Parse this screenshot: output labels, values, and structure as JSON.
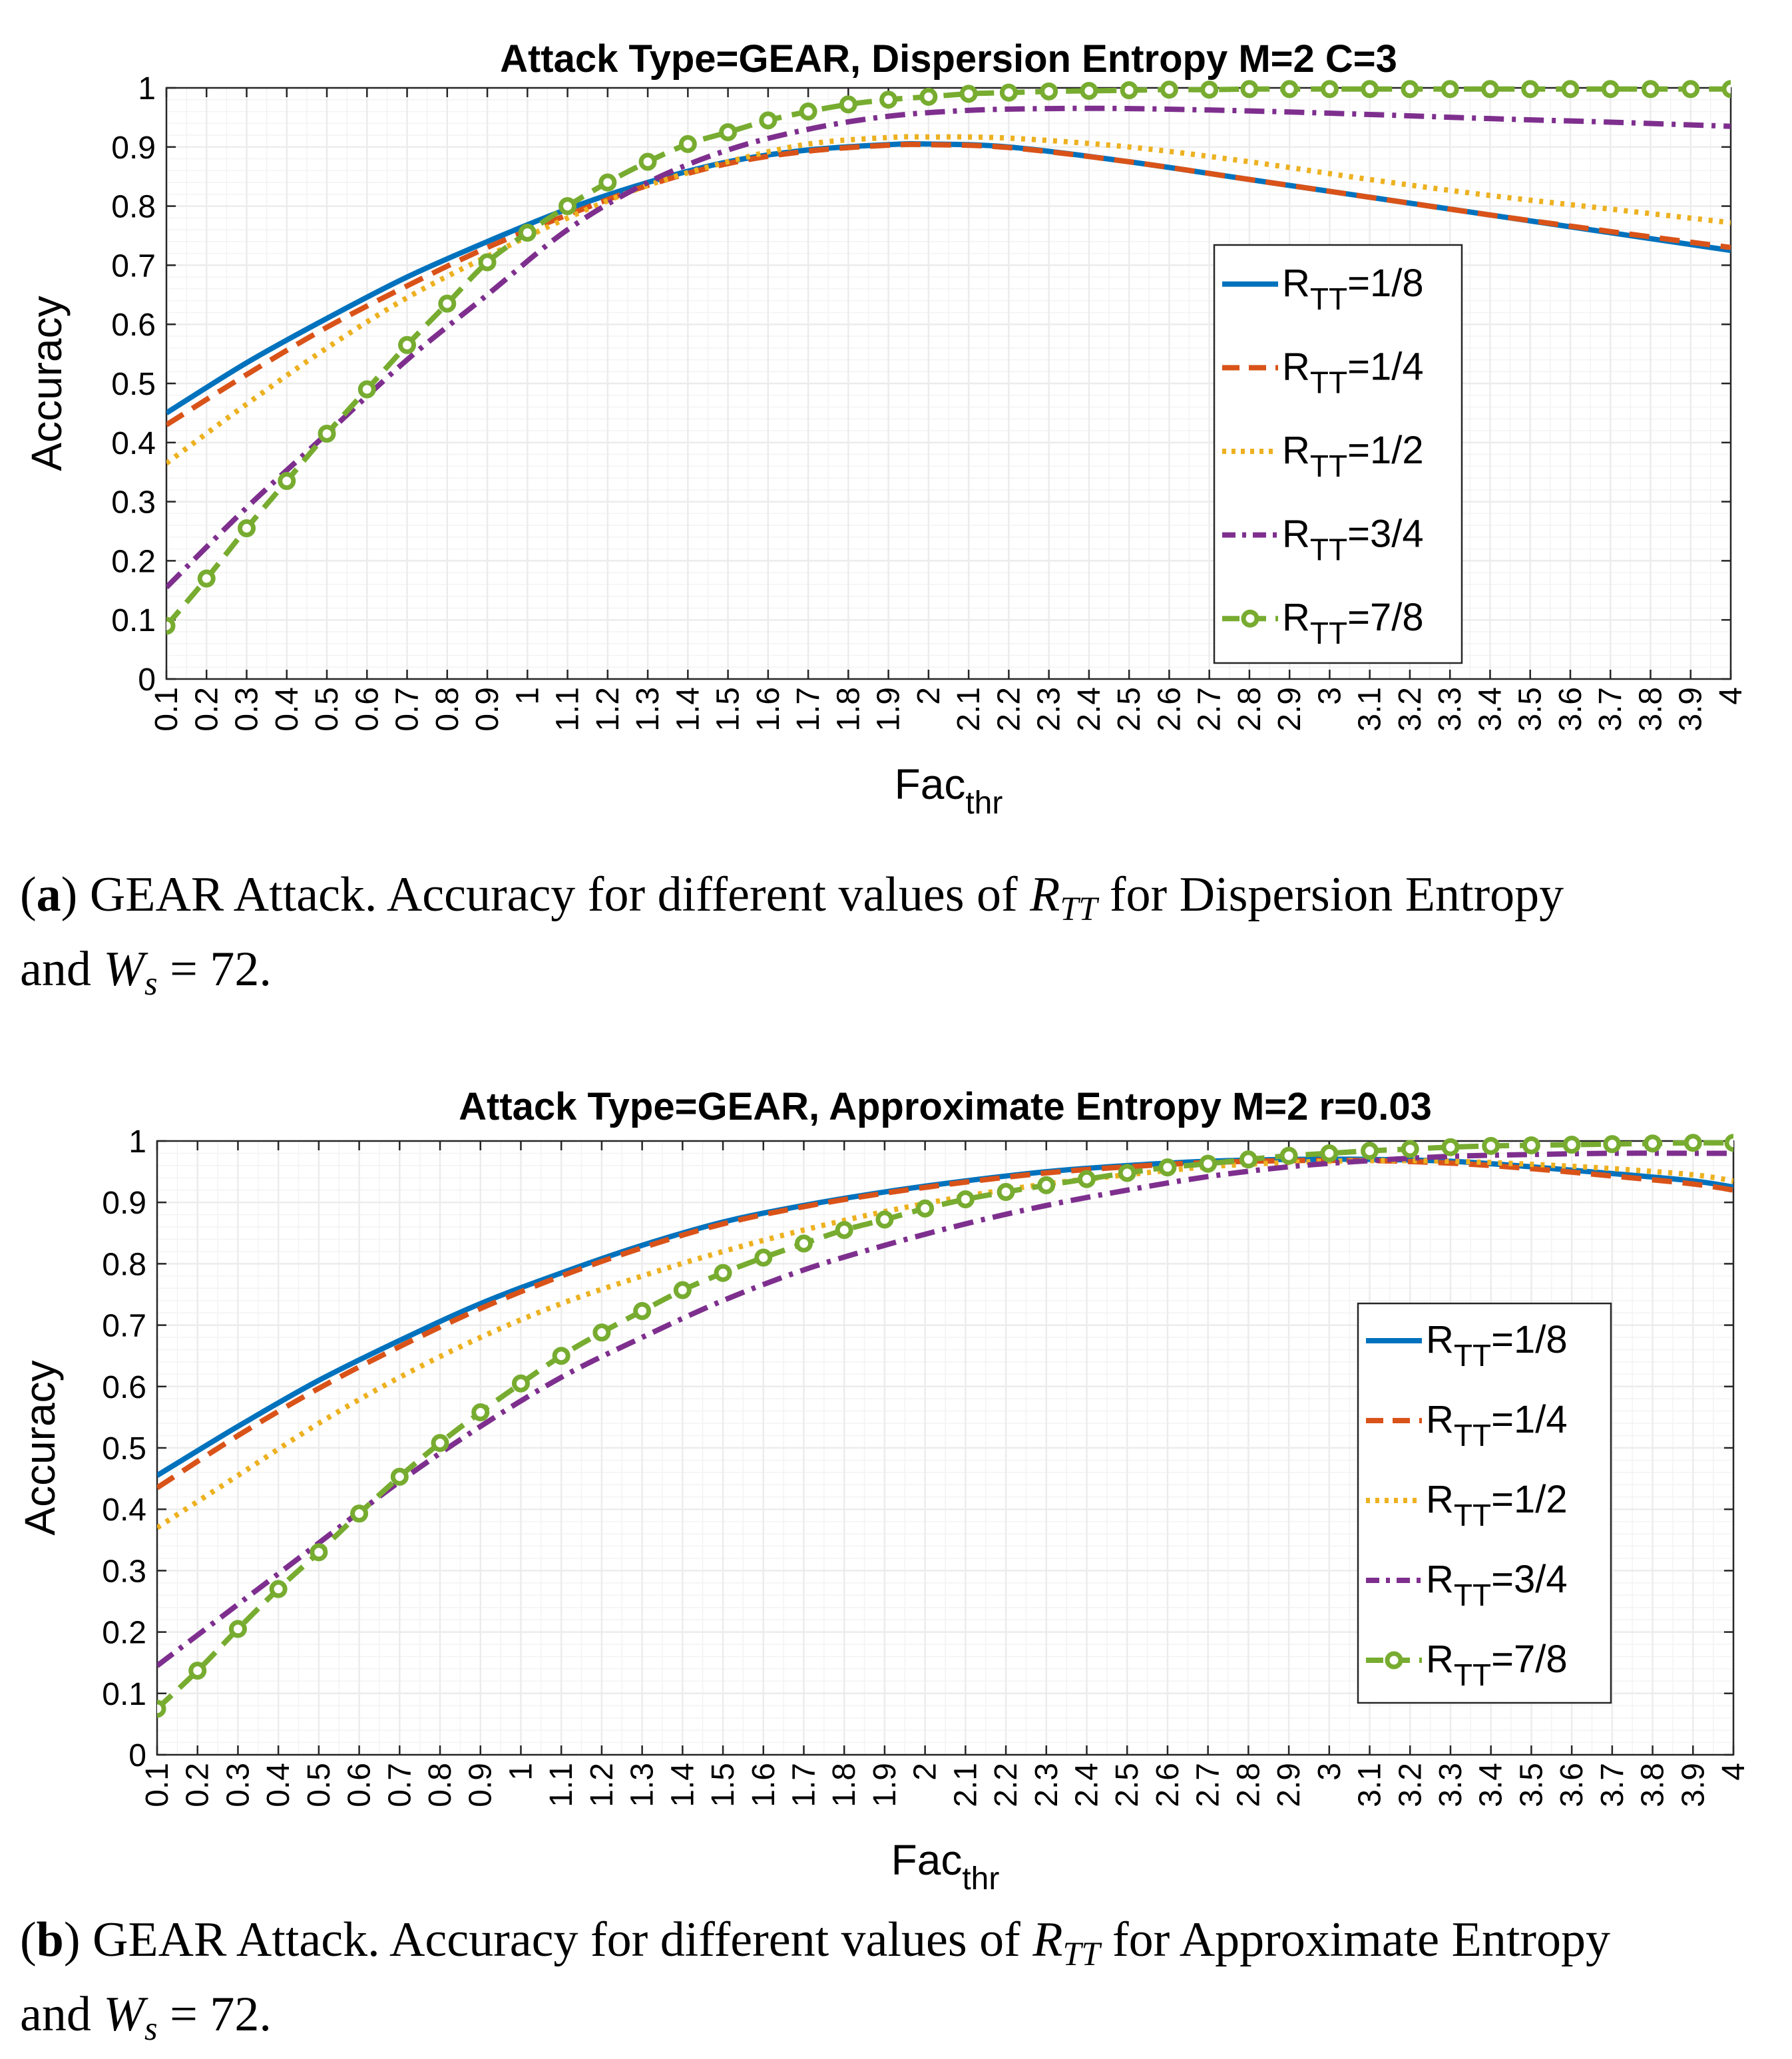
{
  "colors": {
    "series_blue": "#0072BD",
    "series_orange": "#D95319",
    "series_yellow": "#EDB120",
    "series_purple": "#7E2F8E",
    "series_green": "#77AC30",
    "grid": "#ececec",
    "axis": "#262626"
  },
  "chart_data": [
    {
      "type": "line",
      "title": "Attack Type=GEAR, Dispersion Entropy M=2 C=3",
      "xlabel": "Fac",
      "xlabel_sub": "thr",
      "ylabel": "Accuracy",
      "xlim": [
        0.1,
        4.0
      ],
      "ylim": [
        0,
        1
      ],
      "grid": true,
      "legend_location": "right-middle",
      "x_ticks": [
        "0.1",
        "0.2",
        "0.3",
        "0.4",
        "0.5",
        "0.6",
        "0.7",
        "0.8",
        "0.9",
        "1",
        "1.1",
        "1.2",
        "1.3",
        "1.4",
        "1.5",
        "1.6",
        "1.7",
        "1.8",
        "1.9",
        "2",
        "2.1",
        "2.2",
        "2.3",
        "2.4",
        "2.5",
        "2.6",
        "2.7",
        "2.8",
        "2.9",
        "3",
        "3.1",
        "3.2",
        "3.3",
        "3.4",
        "3.5",
        "3.6",
        "3.7",
        "3.8",
        "3.9",
        "4"
      ],
      "y_ticks": [
        "0",
        "0.1",
        "0.2",
        "0.3",
        "0.4",
        "0.5",
        "0.6",
        "0.7",
        "0.8",
        "0.9",
        "1"
      ],
      "series": [
        {
          "name": "R",
          "sub": "TT",
          "suffix": "=1/8",
          "style": "solid",
          "color_key": "series_blue",
          "x": [
            0.1,
            0.3,
            0.5,
            0.7,
            0.9,
            1.1,
            1.3,
            1.5,
            1.7,
            1.9,
            2.0,
            2.2,
            2.5,
            2.8,
            3.1,
            3.4,
            3.7,
            4.0
          ],
          "values": [
            0.45,
            0.535,
            0.61,
            0.68,
            0.74,
            0.795,
            0.84,
            0.875,
            0.895,
            0.904,
            0.905,
            0.9,
            0.875,
            0.845,
            0.815,
            0.785,
            0.755,
            0.725
          ]
        },
        {
          "name": "R",
          "sub": "TT",
          "suffix": "=1/4",
          "style": "dash",
          "color_key": "series_orange",
          "x": [
            0.1,
            0.3,
            0.5,
            0.7,
            0.9,
            1.1,
            1.3,
            1.5,
            1.7,
            1.9,
            2.0,
            2.2,
            2.5,
            2.8,
            3.1,
            3.4,
            3.7,
            4.0
          ],
          "values": [
            0.43,
            0.515,
            0.595,
            0.665,
            0.73,
            0.785,
            0.835,
            0.872,
            0.893,
            0.903,
            0.904,
            0.899,
            0.875,
            0.845,
            0.815,
            0.785,
            0.757,
            0.73
          ]
        },
        {
          "name": "R",
          "sub": "TT",
          "suffix": "=1/2",
          "style": "dot",
          "color_key": "series_yellow",
          "x": [
            0.1,
            0.3,
            0.5,
            0.7,
            0.9,
            1.1,
            1.3,
            1.5,
            1.7,
            1.9,
            2.0,
            2.2,
            2.5,
            2.8,
            3.1,
            3.4,
            3.7,
            4.0
          ],
          "values": [
            0.365,
            0.465,
            0.56,
            0.645,
            0.715,
            0.78,
            0.835,
            0.875,
            0.905,
            0.916,
            0.917,
            0.915,
            0.9,
            0.875,
            0.845,
            0.818,
            0.795,
            0.772
          ]
        },
        {
          "name": "R",
          "sub": "TT",
          "suffix": "=3/4",
          "style": "dashdot",
          "color_key": "series_purple",
          "x": [
            0.1,
            0.3,
            0.5,
            0.7,
            0.9,
            1.1,
            1.3,
            1.5,
            1.7,
            1.9,
            2.1,
            2.3,
            2.5,
            2.8,
            3.1,
            3.4,
            3.7,
            4.0
          ],
          "values": [
            0.155,
            0.29,
            0.415,
            0.54,
            0.65,
            0.76,
            0.84,
            0.895,
            0.93,
            0.952,
            0.962,
            0.965,
            0.965,
            0.961,
            0.955,
            0.948,
            0.942,
            0.935
          ]
        },
        {
          "name": "R",
          "sub": "TT",
          "suffix": "=7/8",
          "style": "dash",
          "marker": "circle",
          "color_key": "series_green",
          "x": [
            0.1,
            0.2,
            0.3,
            0.4,
            0.5,
            0.6,
            0.7,
            0.8,
            0.9,
            1.0,
            1.1,
            1.2,
            1.3,
            1.4,
            1.5,
            1.6,
            1.7,
            1.8,
            1.9,
            2.0,
            2.1,
            2.2,
            2.3,
            2.4,
            2.5,
            2.6,
            2.7,
            2.8,
            2.9,
            3.0,
            3.1,
            3.2,
            3.3,
            3.4,
            3.5,
            3.6,
            3.7,
            3.8,
            3.9,
            4.0
          ],
          "values": [
            0.09,
            0.17,
            0.255,
            0.335,
            0.415,
            0.49,
            0.565,
            0.635,
            0.705,
            0.755,
            0.8,
            0.84,
            0.875,
            0.905,
            0.925,
            0.945,
            0.96,
            0.972,
            0.98,
            0.985,
            0.99,
            0.992,
            0.994,
            0.995,
            0.996,
            0.997,
            0.997,
            0.998,
            0.998,
            0.998,
            0.998,
            0.998,
            0.998,
            0.998,
            0.998,
            0.998,
            0.998,
            0.998,
            0.998,
            0.998
          ]
        }
      ]
    },
    {
      "type": "line",
      "title": "Attack Type=GEAR, Approximate Entropy M=2 r=0.03",
      "xlabel": "Fac",
      "xlabel_sub": "thr",
      "ylabel": "Accuracy",
      "xlim": [
        0.1,
        4.0
      ],
      "ylim": [
        0,
        1
      ],
      "grid": true,
      "legend_location": "right-middle",
      "x_ticks": [
        "0.1",
        "0.2",
        "0.3",
        "0.4",
        "0.5",
        "0.6",
        "0.7",
        "0.8",
        "0.9",
        "1",
        "1.1",
        "1.2",
        "1.3",
        "1.4",
        "1.5",
        "1.6",
        "1.7",
        "1.8",
        "1.9",
        "2",
        "2.1",
        "2.2",
        "2.3",
        "2.4",
        "2.5",
        "2.6",
        "2.7",
        "2.8",
        "2.9",
        "3",
        "3.1",
        "3.2",
        "3.3",
        "3.4",
        "3.5",
        "3.6",
        "3.7",
        "3.8",
        "3.9",
        "4"
      ],
      "y_ticks": [
        "0",
        "0.1",
        "0.2",
        "0.3",
        "0.4",
        "0.5",
        "0.6",
        "0.7",
        "0.8",
        "0.9",
        "1"
      ],
      "series": [
        {
          "name": "R",
          "sub": "TT",
          "suffix": "=1/8",
          "style": "solid",
          "color_key": "series_blue",
          "x": [
            0.1,
            0.3,
            0.5,
            0.7,
            0.9,
            1.1,
            1.3,
            1.5,
            1.7,
            1.9,
            2.1,
            2.3,
            2.5,
            2.7,
            2.9,
            3.1,
            3.3,
            3.5,
            3.7,
            3.9,
            4.0
          ],
          "values": [
            0.455,
            0.535,
            0.61,
            0.675,
            0.735,
            0.785,
            0.83,
            0.868,
            0.895,
            0.917,
            0.935,
            0.95,
            0.96,
            0.967,
            0.97,
            0.97,
            0.967,
            0.958,
            0.947,
            0.935,
            0.925
          ]
        },
        {
          "name": "R",
          "sub": "TT",
          "suffix": "=1/4",
          "style": "dash",
          "color_key": "series_orange",
          "x": [
            0.1,
            0.3,
            0.5,
            0.7,
            0.9,
            1.1,
            1.3,
            1.5,
            1.7,
            1.9,
            2.1,
            2.3,
            2.5,
            2.7,
            2.9,
            3.1,
            3.3,
            3.5,
            3.7,
            3.9,
            4.0
          ],
          "values": [
            0.435,
            0.52,
            0.597,
            0.665,
            0.727,
            0.78,
            0.826,
            0.865,
            0.893,
            0.915,
            0.933,
            0.948,
            0.958,
            0.965,
            0.968,
            0.968,
            0.964,
            0.955,
            0.943,
            0.93,
            0.92
          ]
        },
        {
          "name": "R",
          "sub": "TT",
          "suffix": "=1/2",
          "style": "dot",
          "color_key": "series_yellow",
          "x": [
            0.1,
            0.3,
            0.5,
            0.7,
            0.9,
            1.1,
            1.3,
            1.5,
            1.7,
            1.9,
            2.1,
            2.3,
            2.5,
            2.7,
            2.9,
            3.1,
            3.3,
            3.5,
            3.7,
            3.9,
            4.0
          ],
          "values": [
            0.37,
            0.455,
            0.54,
            0.615,
            0.68,
            0.735,
            0.78,
            0.82,
            0.855,
            0.885,
            0.91,
            0.93,
            0.945,
            0.958,
            0.965,
            0.968,
            0.967,
            0.962,
            0.955,
            0.945,
            0.935
          ]
        },
        {
          "name": "R",
          "sub": "TT",
          "suffix": "=3/4",
          "style": "dashdot",
          "color_key": "series_purple",
          "x": [
            0.1,
            0.3,
            0.5,
            0.7,
            0.9,
            1.1,
            1.3,
            1.5,
            1.7,
            1.9,
            2.1,
            2.3,
            2.5,
            2.7,
            2.9,
            3.1,
            3.3,
            3.5,
            3.7,
            3.9,
            4.0
          ],
          "values": [
            0.145,
            0.245,
            0.345,
            0.445,
            0.535,
            0.615,
            0.68,
            0.74,
            0.79,
            0.83,
            0.865,
            0.895,
            0.92,
            0.942,
            0.958,
            0.968,
            0.975,
            0.978,
            0.98,
            0.98,
            0.98
          ]
        },
        {
          "name": "R",
          "sub": "TT",
          "suffix": "=7/8",
          "style": "dash",
          "marker": "circle",
          "color_key": "series_green",
          "x": [
            0.1,
            0.2,
            0.3,
            0.4,
            0.5,
            0.6,
            0.7,
            0.8,
            0.9,
            1.0,
            1.1,
            1.2,
            1.3,
            1.4,
            1.5,
            1.6,
            1.7,
            1.8,
            1.9,
            2.0,
            2.1,
            2.2,
            2.3,
            2.4,
            2.5,
            2.6,
            2.7,
            2.8,
            2.9,
            3.0,
            3.1,
            3.2,
            3.3,
            3.4,
            3.5,
            3.6,
            3.7,
            3.8,
            3.9,
            4.0
          ],
          "values": [
            0.075,
            0.137,
            0.205,
            0.27,
            0.33,
            0.393,
            0.453,
            0.508,
            0.558,
            0.605,
            0.65,
            0.688,
            0.723,
            0.757,
            0.785,
            0.81,
            0.833,
            0.855,
            0.872,
            0.89,
            0.905,
            0.917,
            0.928,
            0.938,
            0.948,
            0.957,
            0.963,
            0.97,
            0.976,
            0.98,
            0.984,
            0.987,
            0.99,
            0.992,
            0.993,
            0.994,
            0.995,
            0.996,
            0.997,
            0.997
          ]
        }
      ]
    }
  ],
  "captions": [
    {
      "label": "a",
      "pre": " GEAR Attack. Accuracy for different values of ",
      "var": "R",
      "var_sub": "TT",
      "mid": " for Dispersion Entropy",
      "line2_pre": "and ",
      "ws_var": "W",
      "ws_sub": "s",
      "ws_tail": " = 72."
    },
    {
      "label": "b",
      "pre": " GEAR Attack. Accuracy for different values of ",
      "var": "R",
      "var_sub": "TT",
      "mid": " for Approximate Entropy",
      "line2_pre": "and ",
      "ws_var": "W",
      "ws_sub": "s",
      "ws_tail": " = 72."
    }
  ]
}
